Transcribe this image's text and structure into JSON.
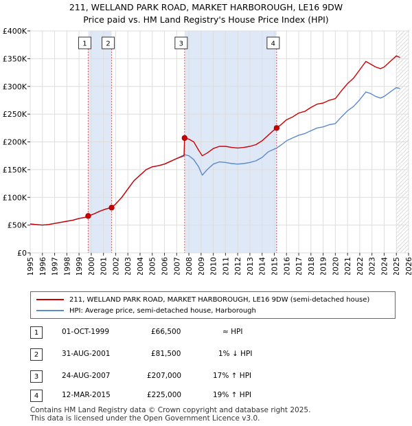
{
  "chart_data": {
    "type": "line",
    "title": "211, WELLAND PARK ROAD, MARKET HARBOROUGH, LE16 9DW",
    "subtitle": "Price paid vs. HM Land Registry's House Price Index (HPI)",
    "xlim": [
      1995,
      2026
    ],
    "ylim": [
      0,
      400000
    ],
    "x_ticks": [
      "1995",
      "1996",
      "1997",
      "1998",
      "1999",
      "2000",
      "2001",
      "2002",
      "2003",
      "2004",
      "2005",
      "2006",
      "2007",
      "2008",
      "2009",
      "2010",
      "2011",
      "2012",
      "2013",
      "2014",
      "2015",
      "2016",
      "2017",
      "2018",
      "2019",
      "2020",
      "2021",
      "2022",
      "2023",
      "2024",
      "2025",
      "2026"
    ],
    "y_ticks": [
      {
        "value": 0,
        "label": "£0"
      },
      {
        "value": 50000,
        "label": "£50K"
      },
      {
        "value": 100000,
        "label": "£100K"
      },
      {
        "value": 150000,
        "label": "£150K"
      },
      {
        "value": 200000,
        "label": "£200K"
      },
      {
        "value": 250000,
        "label": "£250K"
      },
      {
        "value": 300000,
        "label": "£300K"
      },
      {
        "value": 350000,
        "label": "£350K"
      },
      {
        "value": 400000,
        "label": "£400K"
      }
    ],
    "grid": true,
    "shaded_periods": [
      [
        1999.75,
        2001.67
      ],
      [
        2007.65,
        2015.19
      ]
    ],
    "future_hatch_from": 2025.0,
    "series": [
      {
        "name": "211, WELLAND PARK ROAD, MARKET HARBOROUGH, LE16 9DW (semi-detached house)",
        "color": "#cc0000",
        "points": [
          [
            1995.0,
            52000
          ],
          [
            1995.5,
            51000
          ],
          [
            1996.0,
            50000
          ],
          [
            1996.5,
            51000
          ],
          [
            1997.0,
            53000
          ],
          [
            1997.5,
            55000
          ],
          [
            1998.0,
            57000
          ],
          [
            1998.5,
            59000
          ],
          [
            1999.0,
            62000
          ],
          [
            1999.5,
            64000
          ],
          [
            1999.75,
            66500
          ],
          [
            2000.2,
            70000
          ],
          [
            2000.7,
            75000
          ],
          [
            2001.2,
            79000
          ],
          [
            2001.67,
            81500
          ],
          [
            2002.0,
            88000
          ],
          [
            2002.5,
            100000
          ],
          [
            2003.0,
            115000
          ],
          [
            2003.5,
            130000
          ],
          [
            2004.0,
            140000
          ],
          [
            2004.5,
            150000
          ],
          [
            2005.0,
            155000
          ],
          [
            2005.5,
            157000
          ],
          [
            2006.0,
            160000
          ],
          [
            2006.5,
            165000
          ],
          [
            2007.0,
            170000
          ],
          [
            2007.6,
            175000
          ],
          [
            2007.65,
            207000
          ],
          [
            2008.0,
            205000
          ],
          [
            2008.4,
            200000
          ],
          [
            2008.8,
            185000
          ],
          [
            2009.1,
            175000
          ],
          [
            2009.5,
            180000
          ],
          [
            2010.0,
            188000
          ],
          [
            2010.5,
            192000
          ],
          [
            2011.0,
            192000
          ],
          [
            2011.5,
            190000
          ],
          [
            2012.0,
            189000
          ],
          [
            2012.5,
            190000
          ],
          [
            2013.0,
            192000
          ],
          [
            2013.5,
            195000
          ],
          [
            2014.0,
            202000
          ],
          [
            2014.5,
            212000
          ],
          [
            2014.9,
            220000
          ],
          [
            2015.19,
            225000
          ],
          [
            2015.6,
            232000
          ],
          [
            2016.0,
            240000
          ],
          [
            2016.5,
            245000
          ],
          [
            2017.0,
            252000
          ],
          [
            2017.5,
            255000
          ],
          [
            2018.0,
            262000
          ],
          [
            2018.5,
            268000
          ],
          [
            2019.0,
            270000
          ],
          [
            2019.5,
            275000
          ],
          [
            2020.0,
            278000
          ],
          [
            2020.5,
            292000
          ],
          [
            2021.0,
            305000
          ],
          [
            2021.5,
            315000
          ],
          [
            2022.0,
            330000
          ],
          [
            2022.5,
            345000
          ],
          [
            2022.9,
            340000
          ],
          [
            2023.3,
            335000
          ],
          [
            2023.7,
            332000
          ],
          [
            2024.0,
            335000
          ],
          [
            2024.5,
            345000
          ],
          [
            2025.0,
            355000
          ],
          [
            2025.3,
            352000
          ]
        ]
      },
      {
        "name": "HPI: Average price, semi-detached house, Harborough",
        "color": "#5b8ac9",
        "points": [
          [
            1995.0,
            52000
          ],
          [
            1995.5,
            51000
          ],
          [
            1996.0,
            50000
          ],
          [
            1996.5,
            51000
          ],
          [
            1997.0,
            53000
          ],
          [
            1997.5,
            55000
          ],
          [
            1998.0,
            57000
          ],
          [
            1998.5,
            59000
          ],
          [
            1999.0,
            62000
          ],
          [
            1999.5,
            64000
          ],
          [
            1999.75,
            66500
          ],
          [
            2000.2,
            70000
          ],
          [
            2000.7,
            75000
          ],
          [
            2001.2,
            79000
          ],
          [
            2001.67,
            82000
          ],
          [
            2002.0,
            88000
          ],
          [
            2002.5,
            100000
          ],
          [
            2003.0,
            115000
          ],
          [
            2003.5,
            130000
          ],
          [
            2004.0,
            140000
          ],
          [
            2004.5,
            150000
          ],
          [
            2005.0,
            155000
          ],
          [
            2005.5,
            157000
          ],
          [
            2006.0,
            160000
          ],
          [
            2006.5,
            165000
          ],
          [
            2007.0,
            170000
          ],
          [
            2007.65,
            177000
          ],
          [
            2008.0,
            175000
          ],
          [
            2008.4,
            168000
          ],
          [
            2008.8,
            155000
          ],
          [
            2009.1,
            140000
          ],
          [
            2009.5,
            150000
          ],
          [
            2010.0,
            160000
          ],
          [
            2010.5,
            164000
          ],
          [
            2011.0,
            163000
          ],
          [
            2011.5,
            161000
          ],
          [
            2012.0,
            160000
          ],
          [
            2012.5,
            161000
          ],
          [
            2013.0,
            163000
          ],
          [
            2013.5,
            166000
          ],
          [
            2014.0,
            172000
          ],
          [
            2014.5,
            182000
          ],
          [
            2015.19,
            189000
          ],
          [
            2015.6,
            195000
          ],
          [
            2016.0,
            202000
          ],
          [
            2016.5,
            207000
          ],
          [
            2017.0,
            212000
          ],
          [
            2017.5,
            215000
          ],
          [
            2018.0,
            220000
          ],
          [
            2018.5,
            225000
          ],
          [
            2019.0,
            227000
          ],
          [
            2019.5,
            231000
          ],
          [
            2020.0,
            233000
          ],
          [
            2020.5,
            245000
          ],
          [
            2021.0,
            256000
          ],
          [
            2021.5,
            264000
          ],
          [
            2022.0,
            276000
          ],
          [
            2022.5,
            290000
          ],
          [
            2022.9,
            287000
          ],
          [
            2023.3,
            282000
          ],
          [
            2023.7,
            279000
          ],
          [
            2024.0,
            282000
          ],
          [
            2024.5,
            290000
          ],
          [
            2025.0,
            298000
          ],
          [
            2025.3,
            296000
          ]
        ]
      }
    ],
    "sales": [
      {
        "num": "1",
        "x": 1999.75,
        "value": 66500
      },
      {
        "num": "2",
        "x": 2001.67,
        "value": 81500
      },
      {
        "num": "3",
        "x": 2007.65,
        "value": 207000
      },
      {
        "num": "4",
        "x": 2015.19,
        "value": 225000
      }
    ]
  },
  "legend": {
    "series1": "211, WELLAND PARK ROAD, MARKET HARBOROUGH, LE16 9DW (semi-detached house)",
    "series2": "HPI: Average price, semi-detached house, Harborough",
    "color1": "#cc0000",
    "color2": "#5b8ac9"
  },
  "table": [
    {
      "num": "1",
      "date": "01-OCT-1999",
      "price": "£66,500",
      "hpi": "≈ HPI"
    },
    {
      "num": "2",
      "date": "31-AUG-2001",
      "price": "£81,500",
      "hpi": "1% ↓ HPI"
    },
    {
      "num": "3",
      "date": "24-AUG-2007",
      "price": "£207,000",
      "hpi": "17% ↑ HPI"
    },
    {
      "num": "4",
      "date": "12-MAR-2015",
      "price": "£225,000",
      "hpi": "19% ↑ HPI"
    }
  ],
  "footer": {
    "line1": "Contains HM Land Registry data © Crown copyright and database right 2025.",
    "line2": "This data is licensed under the Open Government Licence v3.0."
  }
}
